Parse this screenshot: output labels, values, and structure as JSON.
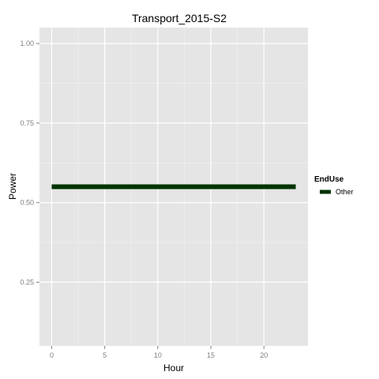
{
  "chart_data": {
    "type": "line",
    "title": "Transport_2015-S2",
    "xlabel": "Hour",
    "ylabel": "Power",
    "xlim": [
      -1.15,
      24.15
    ],
    "ylim": [
      0.05,
      1.05
    ],
    "x_ticks": [
      0,
      5,
      10,
      15,
      20
    ],
    "x_tick_labels": [
      "0",
      "5",
      "10",
      "15",
      "20"
    ],
    "y_ticks": [
      0.25,
      0.5,
      0.75,
      1.0
    ],
    "y_tick_labels": [
      "0.25",
      "0.50",
      "0.75",
      "1.00"
    ],
    "grid": true,
    "background": "#e5e5e5",
    "legend": {
      "title": "EndUse",
      "position": "right"
    },
    "series": [
      {
        "name": "Other",
        "color": "#003300",
        "x": [
          0,
          1,
          2,
          3,
          4,
          5,
          6,
          7,
          8,
          9,
          10,
          11,
          12,
          13,
          14,
          15,
          16,
          17,
          18,
          19,
          20,
          21,
          22,
          23
        ],
        "y": [
          0.55,
          0.55,
          0.55,
          0.55,
          0.55,
          0.55,
          0.55,
          0.55,
          0.55,
          0.55,
          0.55,
          0.55,
          0.55,
          0.55,
          0.55,
          0.55,
          0.55,
          0.55,
          0.55,
          0.55,
          0.55,
          0.55,
          0.55,
          0.55
        ]
      }
    ]
  }
}
